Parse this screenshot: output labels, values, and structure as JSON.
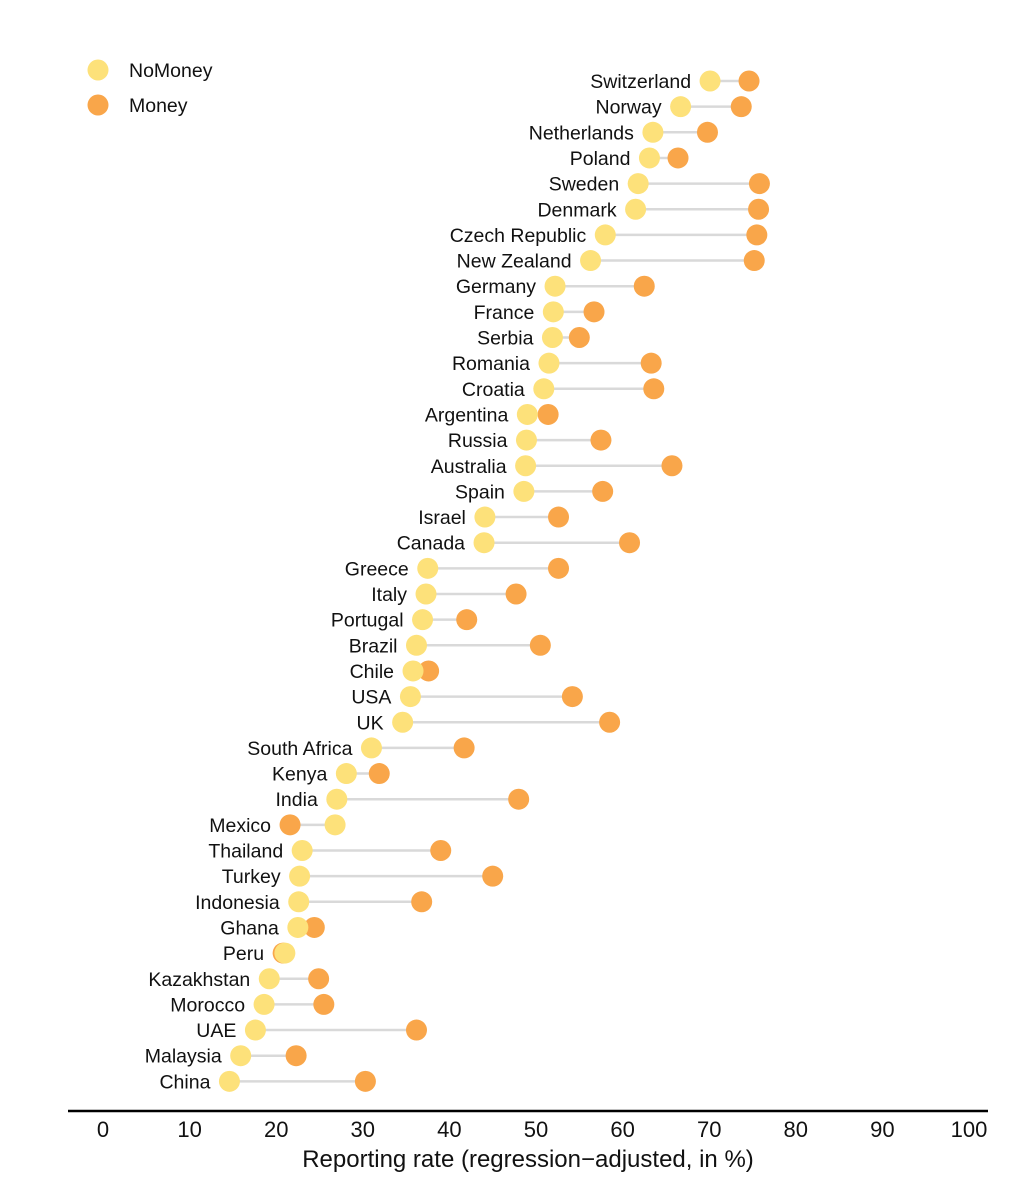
{
  "chart_data": {
    "type": "dot-plot",
    "title": "",
    "xlabel": "Reporting rate (regression−adjusted, in %)",
    "ylabel": "",
    "xlim": [
      0,
      100
    ],
    "xticks": [
      0,
      10,
      20,
      30,
      40,
      50,
      60,
      70,
      80,
      90,
      100
    ],
    "grid": false,
    "legend": {
      "placement": "top-left",
      "entries": [
        {
          "name": "NoMoney",
          "color": "#FDE17A"
        },
        {
          "name": "Money",
          "color": "#F9A64A"
        }
      ]
    },
    "connector_color": "#D9D9D9",
    "categories": [
      "Switzerland",
      "Norway",
      "Netherlands",
      "Poland",
      "Sweden",
      "Denmark",
      "Czech Republic",
      "New Zealand",
      "Germany",
      "France",
      "Serbia",
      "Romania",
      "Croatia",
      "Argentina",
      "Russia",
      "Australia",
      "Spain",
      "Israel",
      "Canada",
      "Greece",
      "Italy",
      "Portugal",
      "Brazil",
      "Chile",
      "USA",
      "UK",
      "South Africa",
      "Kenya",
      "India",
      "Mexico",
      "Thailand",
      "Turkey",
      "Indonesia",
      "Ghana",
      "Peru",
      "Kazakhstan",
      "Morocco",
      "UAE",
      "Malaysia",
      "China"
    ],
    "series": [
      {
        "name": "NoMoney",
        "color": "#FDE17A",
        "values": [
          70.1,
          66.7,
          63.5,
          63.1,
          61.8,
          61.5,
          58.0,
          56.3,
          52.2,
          52.0,
          51.9,
          51.5,
          50.9,
          49.0,
          48.9,
          48.8,
          48.6,
          44.1,
          44.0,
          37.5,
          37.3,
          36.9,
          36.2,
          35.8,
          35.5,
          34.6,
          31.0,
          28.1,
          27.0,
          26.8,
          23.0,
          22.7,
          22.6,
          22.5,
          21.0,
          19.2,
          18.6,
          17.6,
          15.9,
          14.6
        ]
      },
      {
        "name": "Money",
        "color": "#F9A64A",
        "values": [
          74.6,
          73.7,
          69.8,
          66.4,
          75.8,
          75.7,
          75.5,
          75.2,
          62.5,
          56.7,
          55.0,
          63.3,
          63.6,
          51.4,
          57.5,
          65.7,
          57.7,
          52.6,
          60.8,
          52.6,
          47.7,
          42.0,
          50.5,
          37.6,
          54.2,
          58.5,
          41.7,
          31.9,
          48.0,
          21.6,
          39.0,
          45.0,
          36.8,
          24.4,
          20.8,
          24.9,
          25.5,
          36.2,
          22.3,
          30.3
        ]
      }
    ]
  }
}
